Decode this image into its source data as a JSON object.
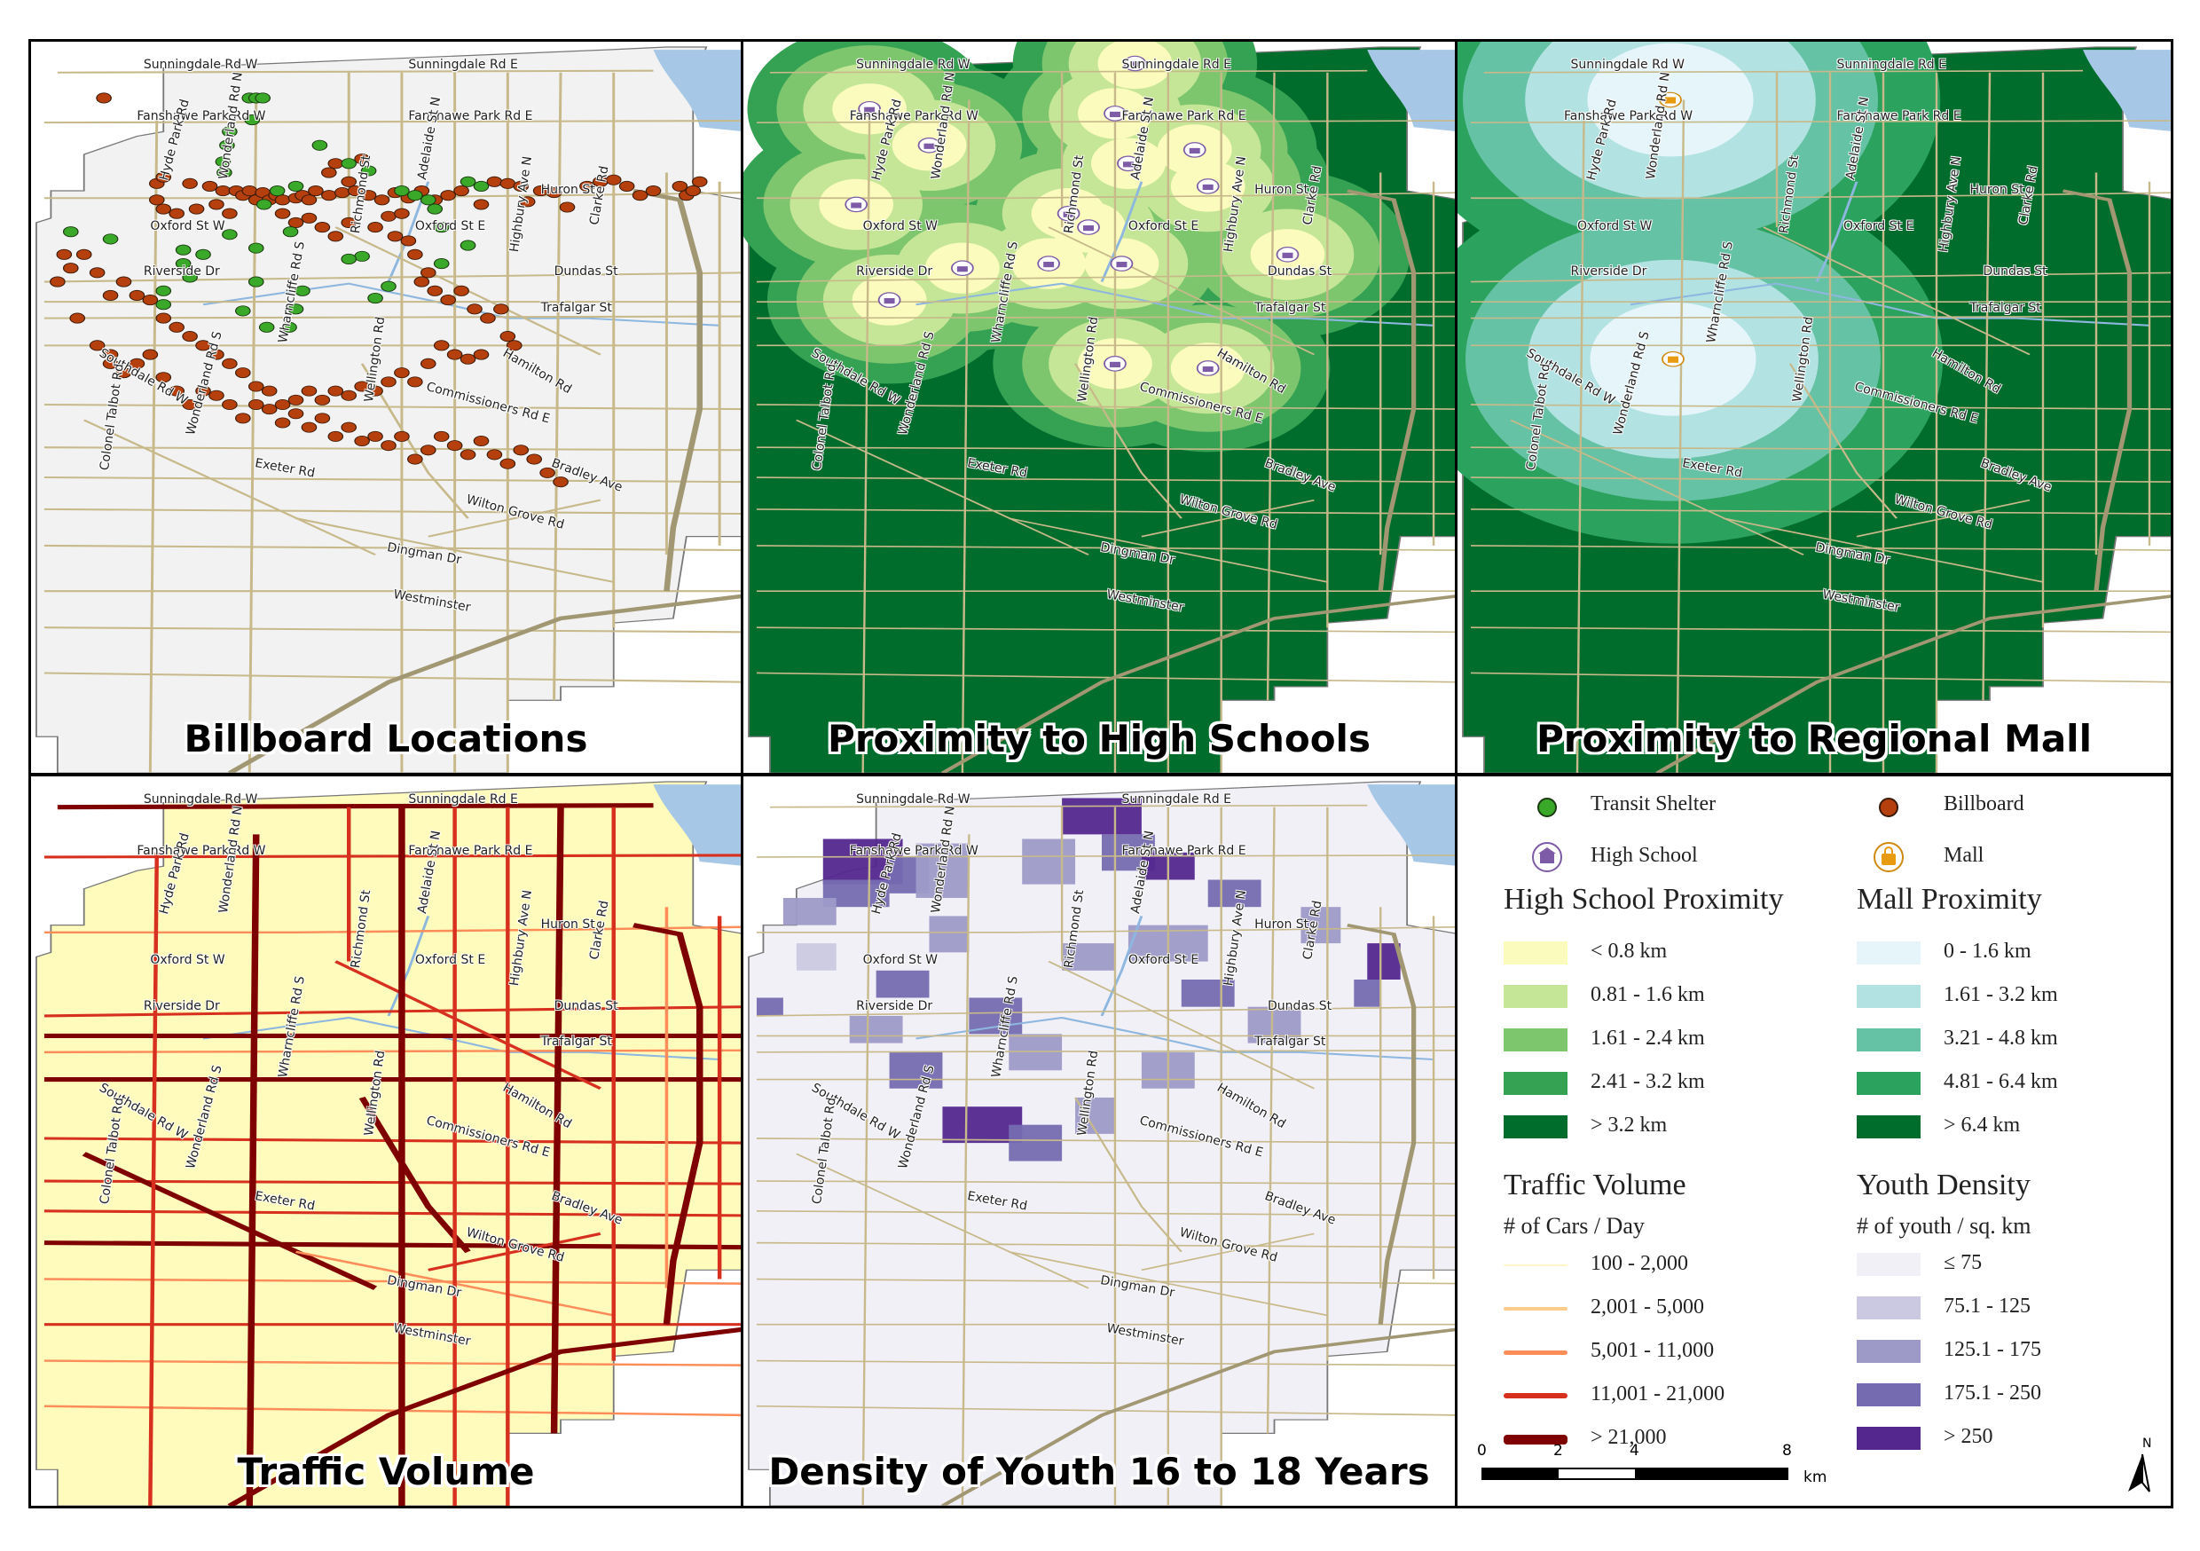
{
  "panels": {
    "billboards": {
      "title": "Billboard Locations"
    },
    "highschools": {
      "title": "Proximity to High Schools"
    },
    "mall": {
      "title": "Proximity to Regional Mall"
    },
    "traffic": {
      "title": "Traffic Volume"
    },
    "youth": {
      "title": "Density of Youth 16 to 18 Years"
    }
  },
  "street_labels": {
    "sunningdale_w": "Sunningdale Rd W",
    "sunningdale_e": "Sunningdale Rd E",
    "fanshawe_w": "Fanshawe Park Rd W",
    "fanshawe_e": "Fanshawe Park Rd E",
    "hyde_park": "Hyde Park Rd",
    "wonderland_n": "Wonderland Rd N",
    "adelaide_n": "Adelaide St N",
    "huron": "Huron St",
    "richmond": "Richmond St",
    "clarke": "Clarke Rd",
    "oxford_w": "Oxford St W",
    "oxford_e": "Oxford St E",
    "highbury_n": "Highbury Ave N",
    "riverside": "Riverside Dr",
    "dundas": "Dundas St",
    "wharncliffe": "Wharncliffe Rd S",
    "trafalgar": "Trafalgar St",
    "hamilton": "Hamilton Rd",
    "southdale_w": "Southdale Rd W",
    "commissioners_e": "Commissioners Rd E",
    "wellington": "Wellington Rd",
    "wonderland_s": "Wonderland Rd S",
    "colonel_talbot": "Colonel Talbot Rd",
    "exeter": "Exeter Rd",
    "bradley": "Bradley Ave",
    "wilton_grove": "Wilton Grove Rd",
    "dingman": "Dingman Dr",
    "westminster": "Westminster"
  },
  "legend": {
    "symbols": {
      "transit_shelter": "Transit Shelter",
      "billboard": "Billboard",
      "high_school": "High School",
      "mall": "Mall"
    },
    "high_school_proximity": {
      "title": "High School Proximity",
      "classes": [
        {
          "label": "< 0.8 km",
          "color": "#fafbbd"
        },
        {
          "label": "0.81 - 1.6 km",
          "color": "#c5e696"
        },
        {
          "label": "1.61 - 2.4 km",
          "color": "#7ec66e"
        },
        {
          "label": "2.41 - 3.2 km",
          "color": "#34a153"
        },
        {
          "label": "> 3.2 km",
          "color": "#006d2c"
        }
      ]
    },
    "mall_proximity": {
      "title": "Mall Proximity",
      "classes": [
        {
          "label": "0 - 1.6 km",
          "color": "#e5f5f9"
        },
        {
          "label": "1.61 - 3.2 km",
          "color": "#b2e2e2"
        },
        {
          "label": "3.21 - 4.8 km",
          "color": "#66c2a4"
        },
        {
          "label": "4.81 - 6.4 km",
          "color": "#2ca25f"
        },
        {
          "label": "> 6.4 km",
          "color": "#006d2c"
        }
      ]
    },
    "traffic_volume": {
      "title": "Traffic Volume",
      "subtitle": "# of Cars / Day",
      "classes": [
        {
          "label": "100 - 2,000",
          "color": "#fff5c8"
        },
        {
          "label": "2,001 - 5,000",
          "color": "#fdcc8a"
        },
        {
          "label": "5,001 - 11,000",
          "color": "#fc8d59"
        },
        {
          "label": "11,001 - 21,000",
          "color": "#d7301f"
        },
        {
          "label": "> 21,000",
          "color": "#7f0000"
        }
      ]
    },
    "youth_density": {
      "title": "Youth Density",
      "subtitle": "# of youth / sq. km",
      "classes": [
        {
          "label": "≤ 75",
          "color": "#f2f0f7"
        },
        {
          "label": "75.1 - 125",
          "color": "#cbc9e2"
        },
        {
          "label": "125.1 - 175",
          "color": "#9e9ac8"
        },
        {
          "label": "175.1 - 250",
          "color": "#756bb1"
        },
        {
          "label": "> 250",
          "color": "#54278f"
        }
      ]
    },
    "scale_bar": {
      "ticks": [
        "0",
        "2",
        "4",
        "8"
      ],
      "unit": "km"
    },
    "north": "N"
  },
  "colors": {
    "transit_shelter": "#3aa829",
    "billboard": "#b5400e",
    "road": "#c7b98a",
    "water": "#a6c8e6",
    "land_gray": "#f2f2f2"
  },
  "icons": {
    "high_school": "school-icon",
    "mall": "shopping-bag-icon",
    "north_arrow": "north-arrow-icon"
  }
}
